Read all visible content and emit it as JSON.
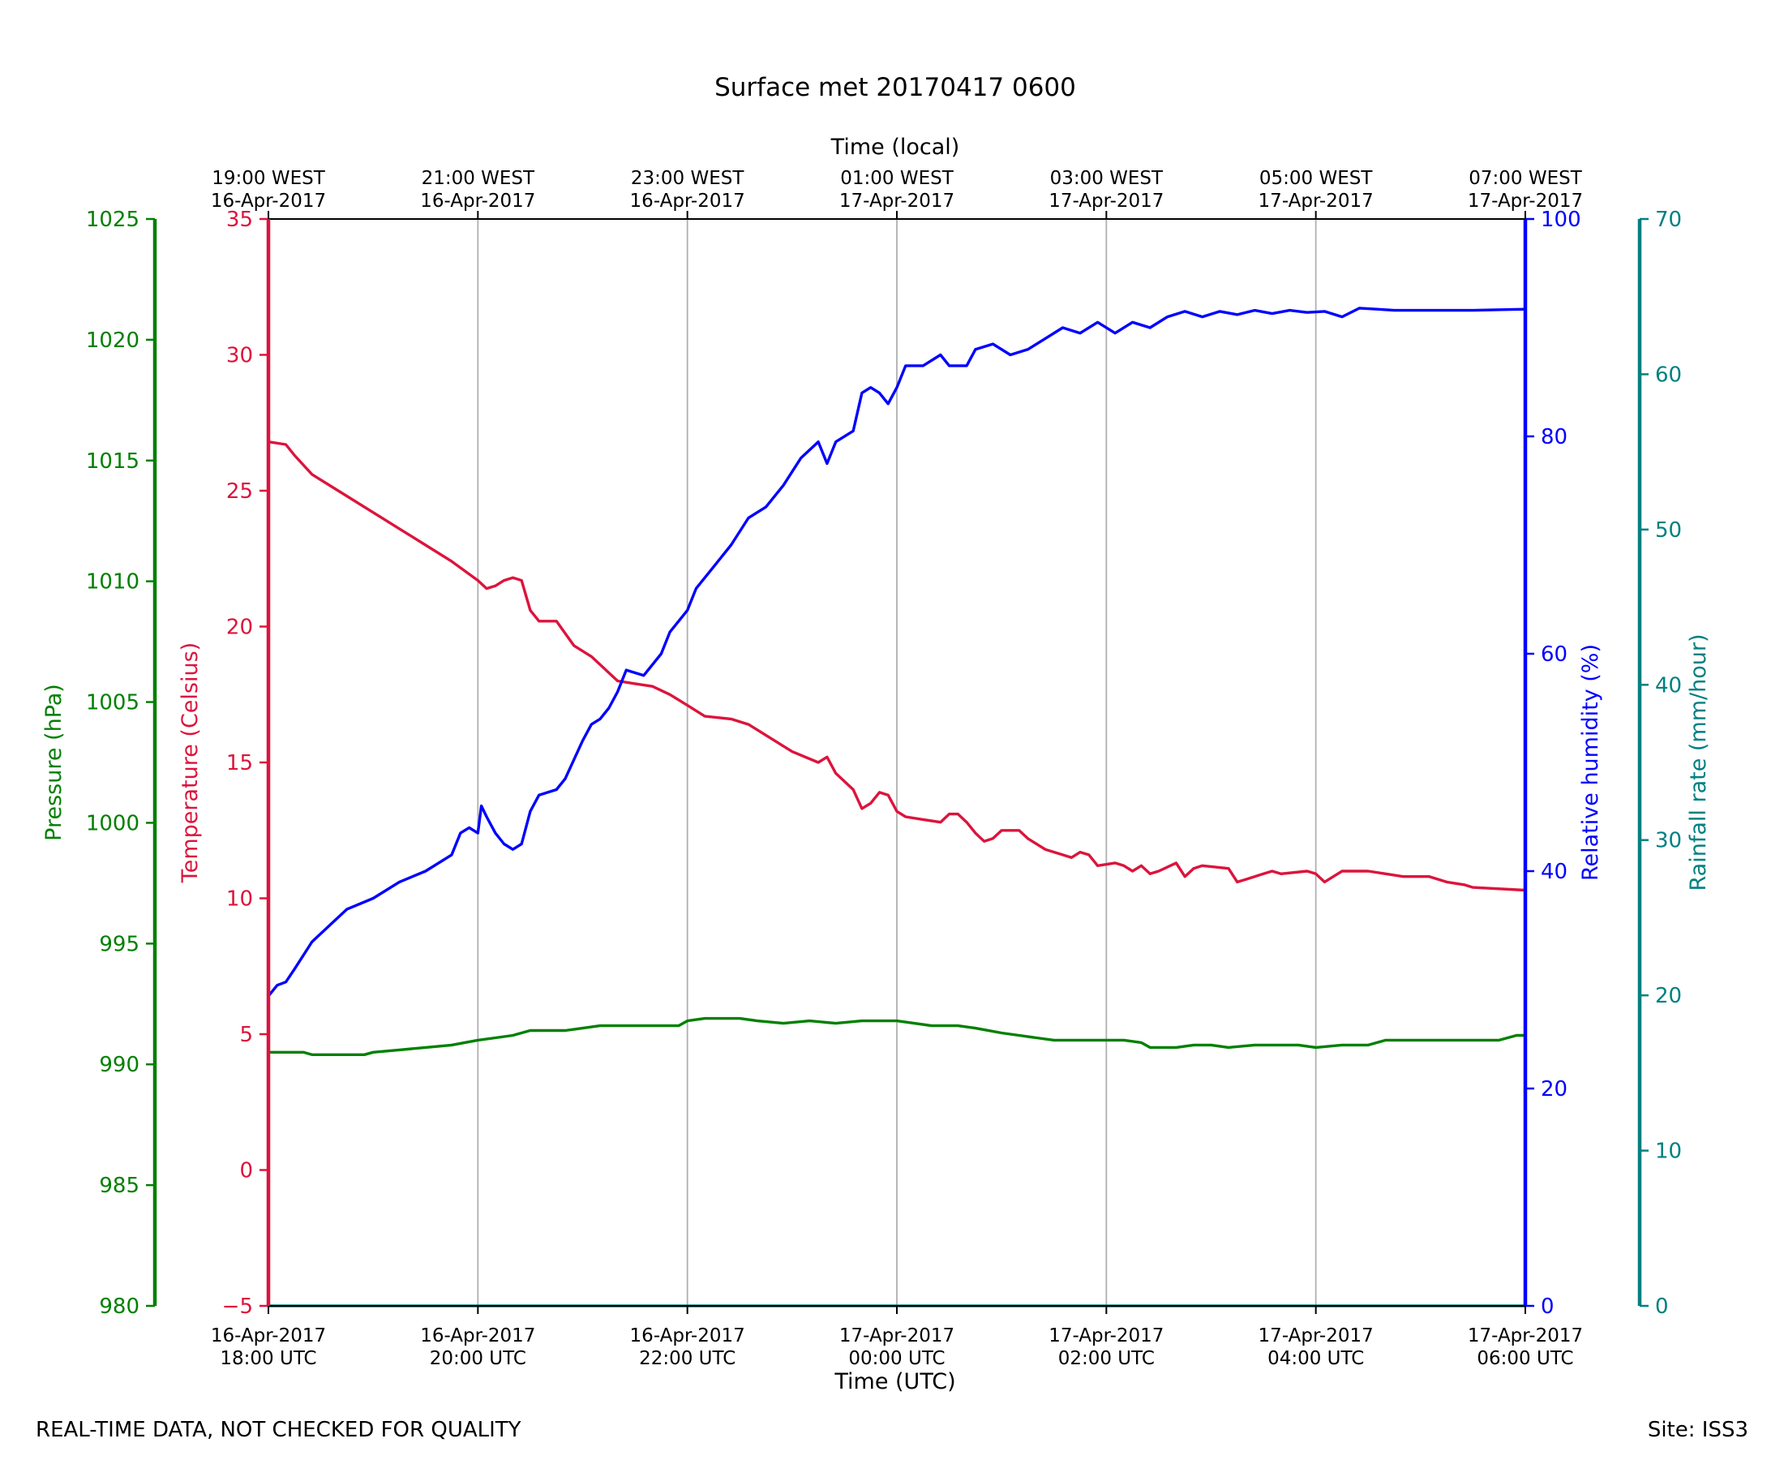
{
  "footer": {
    "disclaimer": "REAL-TIME DATA, NOT CHECKED FOR QUALITY",
    "site": "Site: ISS3"
  },
  "chart_data": {
    "type": "line",
    "title": "Surface met 20170417 0600",
    "xlabel_bottom": "Time (UTC)",
    "xlabel_top": "Time (local)",
    "x_range_utc": [
      "2017-04-16 18:00",
      "2017-04-17 06:00"
    ],
    "x_ticks_bottom": [
      [
        "16-Apr-2017",
        "18:00 UTC"
      ],
      [
        "16-Apr-2017",
        "20:00 UTC"
      ],
      [
        "16-Apr-2017",
        "22:00 UTC"
      ],
      [
        "17-Apr-2017",
        "00:00 UTC"
      ],
      [
        "17-Apr-2017",
        "02:00 UTC"
      ],
      [
        "17-Apr-2017",
        "04:00 UTC"
      ],
      [
        "17-Apr-2017",
        "06:00 UTC"
      ]
    ],
    "x_ticks_top": [
      [
        "19:00 WEST",
        "16-Apr-2017"
      ],
      [
        "21:00 WEST",
        "16-Apr-2017"
      ],
      [
        "23:00 WEST",
        "16-Apr-2017"
      ],
      [
        "01:00 WEST",
        "17-Apr-2017"
      ],
      [
        "03:00 WEST",
        "17-Apr-2017"
      ],
      [
        "05:00 WEST",
        "17-Apr-2017"
      ],
      [
        "07:00 WEST",
        "17-Apr-2017"
      ]
    ],
    "vertical_grid": true,
    "axes": {
      "pressure": {
        "label": "Pressure (hPa)",
        "range": [
          980,
          1025
        ],
        "ticks": [
          980,
          985,
          990,
          995,
          1000,
          1005,
          1010,
          1015,
          1020,
          1025
        ],
        "color": "#008000",
        "side": "left-outer"
      },
      "temperature": {
        "label": "Temperature (Celsius)",
        "range": [
          -5,
          35
        ],
        "ticks": [
          -5,
          0,
          5,
          10,
          15,
          20,
          25,
          30,
          35
        ],
        "color": "#dc143c",
        "side": "left-inner"
      },
      "humidity": {
        "label": "Relative humidity (%)",
        "range": [
          0,
          100
        ],
        "ticks": [
          0,
          20,
          40,
          60,
          80,
          100
        ],
        "color": "#0000ff",
        "side": "right-inner"
      },
      "rainfall": {
        "label": "Rainfall rate (mm/hour)",
        "range": [
          0,
          70
        ],
        "ticks": [
          0,
          10,
          20,
          30,
          40,
          50,
          60,
          70
        ],
        "color": "#008080",
        "side": "right-outer"
      }
    },
    "series": [
      {
        "axis": "temperature",
        "color": "#dc143c",
        "points": [
          [
            "2017-04-16 18:00",
            26.8
          ],
          [
            "2017-04-16 18:10",
            26.7
          ],
          [
            "2017-04-16 18:15",
            26.3
          ],
          [
            "2017-04-16 18:25",
            25.6
          ],
          [
            "2017-04-16 18:40",
            25.0
          ],
          [
            "2017-04-16 19:00",
            24.2
          ],
          [
            "2017-04-16 19:15",
            23.6
          ],
          [
            "2017-04-16 19:30",
            23.0
          ],
          [
            "2017-04-16 19:45",
            22.4
          ],
          [
            "2017-04-16 20:00",
            21.7
          ],
          [
            "2017-04-16 20:05",
            21.4
          ],
          [
            "2017-04-16 20:10",
            21.5
          ],
          [
            "2017-04-16 20:15",
            21.7
          ],
          [
            "2017-04-16 20:20",
            21.8
          ],
          [
            "2017-04-16 20:25",
            21.7
          ],
          [
            "2017-04-16 20:30",
            20.6
          ],
          [
            "2017-04-16 20:35",
            20.2
          ],
          [
            "2017-04-16 20:45",
            20.2
          ],
          [
            "2017-04-16 20:55",
            19.3
          ],
          [
            "2017-04-16 21:05",
            18.9
          ],
          [
            "2017-04-16 21:20",
            18.0
          ],
          [
            "2017-04-16 21:30",
            17.9
          ],
          [
            "2017-04-16 21:40",
            17.8
          ],
          [
            "2017-04-16 21:50",
            17.5
          ],
          [
            "2017-04-16 22:00",
            17.1
          ],
          [
            "2017-04-16 22:10",
            16.7
          ],
          [
            "2017-04-16 22:25",
            16.6
          ],
          [
            "2017-04-16 22:35",
            16.4
          ],
          [
            "2017-04-16 22:50",
            15.8
          ],
          [
            "2017-04-16 23:00",
            15.4
          ],
          [
            "2017-04-16 23:15",
            15.0
          ],
          [
            "2017-04-16 23:20",
            15.2
          ],
          [
            "2017-04-16 23:25",
            14.6
          ],
          [
            "2017-04-16 23:35",
            14.0
          ],
          [
            "2017-04-16 23:40",
            13.3
          ],
          [
            "2017-04-16 23:45",
            13.5
          ],
          [
            "2017-04-16 23:50",
            13.9
          ],
          [
            "2017-04-16 23:55",
            13.8
          ],
          [
            "2017-04-17 00:00",
            13.2
          ],
          [
            "2017-04-17 00:05",
            13.0
          ],
          [
            "2017-04-17 00:15",
            12.9
          ],
          [
            "2017-04-17 00:25",
            12.8
          ],
          [
            "2017-04-17 00:30",
            13.1
          ],
          [
            "2017-04-17 00:35",
            13.1
          ],
          [
            "2017-04-17 00:40",
            12.8
          ],
          [
            "2017-04-17 00:45",
            12.4
          ],
          [
            "2017-04-17 00:50",
            12.1
          ],
          [
            "2017-04-17 00:55",
            12.2
          ],
          [
            "2017-04-17 01:00",
            12.5
          ],
          [
            "2017-04-17 01:10",
            12.5
          ],
          [
            "2017-04-17 01:15",
            12.2
          ],
          [
            "2017-04-17 01:25",
            11.8
          ],
          [
            "2017-04-17 01:35",
            11.6
          ],
          [
            "2017-04-17 01:40",
            11.5
          ],
          [
            "2017-04-17 01:45",
            11.7
          ],
          [
            "2017-04-17 01:50",
            11.6
          ],
          [
            "2017-04-17 01:55",
            11.2
          ],
          [
            "2017-04-17 02:05",
            11.3
          ],
          [
            "2017-04-17 02:10",
            11.2
          ],
          [
            "2017-04-17 02:15",
            11.0
          ],
          [
            "2017-04-17 02:20",
            11.2
          ],
          [
            "2017-04-17 02:25",
            10.9
          ],
          [
            "2017-04-17 02:30",
            11.0
          ],
          [
            "2017-04-17 02:40",
            11.3
          ],
          [
            "2017-04-17 02:45",
            10.8
          ],
          [
            "2017-04-17 02:50",
            11.1
          ],
          [
            "2017-04-17 02:55",
            11.2
          ],
          [
            "2017-04-17 03:10",
            11.1
          ],
          [
            "2017-04-17 03:15",
            10.6
          ],
          [
            "2017-04-17 03:20",
            10.7
          ],
          [
            "2017-04-17 03:30",
            10.9
          ],
          [
            "2017-04-17 03:35",
            11.0
          ],
          [
            "2017-04-17 03:40",
            10.9
          ],
          [
            "2017-04-17 03:55",
            11.0
          ],
          [
            "2017-04-17 04:00",
            10.9
          ],
          [
            "2017-04-17 04:05",
            10.6
          ],
          [
            "2017-04-17 04:10",
            10.8
          ],
          [
            "2017-04-17 04:15",
            11.0
          ],
          [
            "2017-04-17 04:30",
            11.0
          ],
          [
            "2017-04-17 04:40",
            10.9
          ],
          [
            "2017-04-17 04:50",
            10.8
          ],
          [
            "2017-04-17 05:05",
            10.8
          ],
          [
            "2017-04-17 05:15",
            10.6
          ],
          [
            "2017-04-17 05:25",
            10.5
          ],
          [
            "2017-04-17 05:30",
            10.4
          ],
          [
            "2017-04-17 06:00",
            10.3
          ]
        ]
      },
      {
        "axis": "humidity",
        "color": "#0000ff",
        "points": [
          [
            "2017-04-16 18:00",
            28.5
          ],
          [
            "2017-04-16 18:05",
            29.5
          ],
          [
            "2017-04-16 18:10",
            29.8
          ],
          [
            "2017-04-16 18:15",
            31.0
          ],
          [
            "2017-04-16 18:25",
            33.5
          ],
          [
            "2017-04-16 18:35",
            35.0
          ],
          [
            "2017-04-16 18:45",
            36.5
          ],
          [
            "2017-04-16 19:00",
            37.5
          ],
          [
            "2017-04-16 19:15",
            39.0
          ],
          [
            "2017-04-16 19:30",
            40.0
          ],
          [
            "2017-04-16 19:45",
            41.5
          ],
          [
            "2017-04-16 19:50",
            43.5
          ],
          [
            "2017-04-16 19:55",
            44.0
          ],
          [
            "2017-04-16 20:00",
            43.5
          ],
          [
            "2017-04-16 20:02",
            46.0
          ],
          [
            "2017-04-16 20:05",
            45.0
          ],
          [
            "2017-04-16 20:10",
            43.5
          ],
          [
            "2017-04-16 20:15",
            42.5
          ],
          [
            "2017-04-16 20:20",
            42.0
          ],
          [
            "2017-04-16 20:25",
            42.5
          ],
          [
            "2017-04-16 20:30",
            45.5
          ],
          [
            "2017-04-16 20:35",
            47.0
          ],
          [
            "2017-04-16 20:45",
            47.5
          ],
          [
            "2017-04-16 20:50",
            48.5
          ],
          [
            "2017-04-16 21:00",
            52.0
          ],
          [
            "2017-04-16 21:05",
            53.5
          ],
          [
            "2017-04-16 21:10",
            54.0
          ],
          [
            "2017-04-16 21:15",
            55.0
          ],
          [
            "2017-04-16 21:20",
            56.5
          ],
          [
            "2017-04-16 21:25",
            58.5
          ],
          [
            "2017-04-16 21:35",
            58.0
          ],
          [
            "2017-04-16 21:45",
            60.0
          ],
          [
            "2017-04-16 21:50",
            62.0
          ],
          [
            "2017-04-16 21:55",
            63.0
          ],
          [
            "2017-04-16 22:00",
            64.0
          ],
          [
            "2017-04-16 22:05",
            66.0
          ],
          [
            "2017-04-16 22:15",
            68.0
          ],
          [
            "2017-04-16 22:25",
            70.0
          ],
          [
            "2017-04-16 22:35",
            72.5
          ],
          [
            "2017-04-16 22:45",
            73.5
          ],
          [
            "2017-04-16 22:55",
            75.5
          ],
          [
            "2017-04-16 23:05",
            78.0
          ],
          [
            "2017-04-16 23:15",
            79.5
          ],
          [
            "2017-04-16 23:20",
            77.5
          ],
          [
            "2017-04-16 23:25",
            79.5
          ],
          [
            "2017-04-16 23:35",
            80.5
          ],
          [
            "2017-04-16 23:40",
            84.0
          ],
          [
            "2017-04-16 23:45",
            84.5
          ],
          [
            "2017-04-16 23:50",
            84.0
          ],
          [
            "2017-04-16 23:55",
            83.0
          ],
          [
            "2017-04-17 00:00",
            84.5
          ],
          [
            "2017-04-17 00:05",
            86.5
          ],
          [
            "2017-04-17 00:15",
            86.5
          ],
          [
            "2017-04-17 00:25",
            87.5
          ],
          [
            "2017-04-17 00:30",
            86.5
          ],
          [
            "2017-04-17 00:40",
            86.5
          ],
          [
            "2017-04-17 00:45",
            88.0
          ],
          [
            "2017-04-17 00:55",
            88.5
          ],
          [
            "2017-04-17 01:05",
            87.5
          ],
          [
            "2017-04-17 01:15",
            88.0
          ],
          [
            "2017-04-17 01:25",
            89.0
          ],
          [
            "2017-04-17 01:35",
            90.0
          ],
          [
            "2017-04-17 01:45",
            89.5
          ],
          [
            "2017-04-17 01:55",
            90.5
          ],
          [
            "2017-04-17 02:05",
            89.5
          ],
          [
            "2017-04-17 02:15",
            90.5
          ],
          [
            "2017-04-17 02:25",
            90.0
          ],
          [
            "2017-04-17 02:35",
            91.0
          ],
          [
            "2017-04-17 02:45",
            91.5
          ],
          [
            "2017-04-17 02:55",
            91.0
          ],
          [
            "2017-04-17 03:05",
            91.5
          ],
          [
            "2017-04-17 03:15",
            91.2
          ],
          [
            "2017-04-17 03:25",
            91.6
          ],
          [
            "2017-04-17 03:35",
            91.3
          ],
          [
            "2017-04-17 03:45",
            91.6
          ],
          [
            "2017-04-17 03:55",
            91.4
          ],
          [
            "2017-04-17 04:05",
            91.5
          ],
          [
            "2017-04-17 04:15",
            91.0
          ],
          [
            "2017-04-17 04:25",
            91.8
          ],
          [
            "2017-04-17 04:35",
            91.7
          ],
          [
            "2017-04-17 04:45",
            91.6
          ],
          [
            "2017-04-17 05:00",
            91.6
          ],
          [
            "2017-04-17 05:30",
            91.6
          ],
          [
            "2017-04-17 06:00",
            91.7
          ]
        ]
      },
      {
        "axis": "pressure",
        "color": "#008000",
        "points": [
          [
            "2017-04-16 18:00",
            990.5
          ],
          [
            "2017-04-16 18:20",
            990.5
          ],
          [
            "2017-04-16 18:25",
            990.4
          ],
          [
            "2017-04-16 18:55",
            990.4
          ],
          [
            "2017-04-16 19:00",
            990.5
          ],
          [
            "2017-04-16 19:15",
            990.6
          ],
          [
            "2017-04-16 19:30",
            990.7
          ],
          [
            "2017-04-16 19:45",
            990.8
          ],
          [
            "2017-04-16 20:00",
            991.0
          ],
          [
            "2017-04-16 20:10",
            991.1
          ],
          [
            "2017-04-16 20:20",
            991.2
          ],
          [
            "2017-04-16 20:30",
            991.4
          ],
          [
            "2017-04-16 20:50",
            991.4
          ],
          [
            "2017-04-16 21:00",
            991.5
          ],
          [
            "2017-04-16 21:10",
            991.6
          ],
          [
            "2017-04-16 21:30",
            991.6
          ],
          [
            "2017-04-16 21:55",
            991.6
          ],
          [
            "2017-04-16 22:00",
            991.8
          ],
          [
            "2017-04-16 22:10",
            991.9
          ],
          [
            "2017-04-16 22:30",
            991.9
          ],
          [
            "2017-04-16 22:40",
            991.8
          ],
          [
            "2017-04-16 22:55",
            991.7
          ],
          [
            "2017-04-16 23:10",
            991.8
          ],
          [
            "2017-04-16 23:25",
            991.7
          ],
          [
            "2017-04-16 23:40",
            991.8
          ],
          [
            "2017-04-17 00:00",
            991.8
          ],
          [
            "2017-04-17 00:10",
            991.7
          ],
          [
            "2017-04-17 00:20",
            991.6
          ],
          [
            "2017-04-17 00:35",
            991.6
          ],
          [
            "2017-04-17 00:45",
            991.5
          ],
          [
            "2017-04-17 01:00",
            991.3
          ],
          [
            "2017-04-17 01:10",
            991.2
          ],
          [
            "2017-04-17 01:20",
            991.1
          ],
          [
            "2017-04-17 01:30",
            991.0
          ],
          [
            "2017-04-17 02:00",
            991.0
          ],
          [
            "2017-04-17 02:10",
            991.0
          ],
          [
            "2017-04-17 02:20",
            990.9
          ],
          [
            "2017-04-17 02:25",
            990.7
          ],
          [
            "2017-04-17 02:40",
            990.7
          ],
          [
            "2017-04-17 02:50",
            990.8
          ],
          [
            "2017-04-17 03:00",
            990.8
          ],
          [
            "2017-04-17 03:10",
            990.7
          ],
          [
            "2017-04-17 03:25",
            990.8
          ],
          [
            "2017-04-17 03:35",
            990.8
          ],
          [
            "2017-04-17 03:50",
            990.8
          ],
          [
            "2017-04-17 04:00",
            990.7
          ],
          [
            "2017-04-17 04:15",
            990.8
          ],
          [
            "2017-04-17 04:30",
            990.8
          ],
          [
            "2017-04-17 04:40",
            991.0
          ],
          [
            "2017-04-17 05:00",
            991.0
          ],
          [
            "2017-04-17 05:30",
            991.0
          ],
          [
            "2017-04-17 05:45",
            991.0
          ],
          [
            "2017-04-17 05:55",
            991.2
          ],
          [
            "2017-04-17 06:00",
            991.2
          ]
        ]
      },
      {
        "axis": "rainfall",
        "color": "#008080",
        "points": [
          [
            "2017-04-16 18:00",
            0.0
          ],
          [
            "2017-04-17 06:00",
            0.0
          ]
        ]
      }
    ]
  }
}
